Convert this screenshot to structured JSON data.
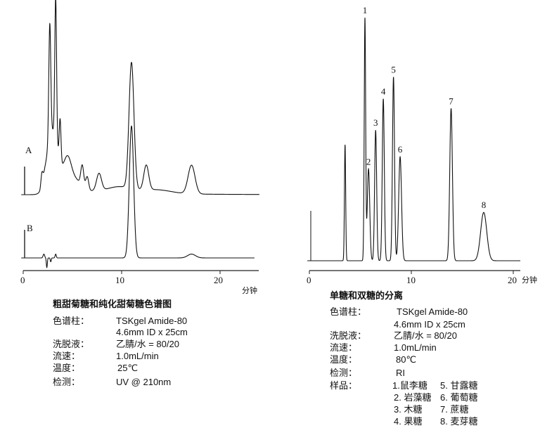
{
  "chart_data": [
    {
      "type": "line",
      "title": "粗甜菊糖和纯化甜菊糖色谱图",
      "xlabel": "分钟",
      "x_ticks": [
        "0",
        "10",
        "20"
      ],
      "xlim": [
        0,
        24
      ],
      "y_axis": "none (relative detector response, no scale printed)",
      "grid": false,
      "series": [
        {
          "name": "A",
          "baseline_offset": 38,
          "peaks": [
            {
              "t": 1.9,
              "h": 6,
              "w": 0.1
            },
            {
              "t": 3.0,
              "h": 30,
              "w": 0.55
            },
            {
              "t": 2.7,
              "h": 60,
              "w": 0.1
            },
            {
              "t": 3.3,
              "h": 74,
              "w": 0.09
            },
            {
              "t": 3.75,
              "h": 22,
              "w": 0.09
            },
            {
              "t": 4.5,
              "h": 16,
              "w": 0.4
            },
            {
              "t": 5.4,
              "h": 5,
              "w": 0.5
            },
            {
              "t": 6.0,
              "h": 11,
              "w": 0.15
            },
            {
              "t": 6.5,
              "h": 7,
              "w": 0.15
            },
            {
              "t": 7.7,
              "h": 9,
              "w": 0.25
            },
            {
              "t": 9.8,
              "h": 3,
              "w": 1.2
            },
            {
              "t": 11.0,
              "h": 66,
              "w": 0.25
            },
            {
              "t": 12.5,
              "h": 13,
              "w": 0.25
            },
            {
              "t": 13.5,
              "h": 2,
              "w": 1.5
            },
            {
              "t": 17.1,
              "h": 15,
              "w": 0.35
            }
          ]
        },
        {
          "name": "B",
          "baseline_offset": 5,
          "peaks": [
            {
              "t": 2.1,
              "h": 2,
              "w": 0.08
            },
            {
              "t": 2.4,
              "h": -5,
              "w": 0.05
            },
            {
              "t": 2.8,
              "h": -2,
              "w": 0.05
            },
            {
              "t": 3.3,
              "h": 2,
              "w": 0.06
            },
            {
              "t": 11.0,
              "h": 69,
              "w": 0.22
            },
            {
              "t": 17.1,
              "h": 2,
              "w": 0.4
            }
          ]
        }
      ],
      "conditions": {
        "column_label": "色谱柱：",
        "column_value": "TSKgel Amide-80",
        "column_value2": "4.6mm ID x 25cm",
        "eluent_label": "洗脱液：",
        "eluent_value": "乙腈/水 = 80/20",
        "flow_label": "流速：",
        "flow_value": "1.0mL/min",
        "temp_label": "温度：",
        "temp_value": "25℃",
        "detect_label": "检测：",
        "detect_value": "UV @ 210nm"
      }
    },
    {
      "type": "line",
      "title": "单糖和双糖的分离",
      "xlabel": "分钟",
      "x_ticks": [
        "0",
        "10",
        "20"
      ],
      "xlim": [
        0,
        20.7
      ],
      "y_axis": "none (relative detector response, no scale printed)",
      "grid": false,
      "series": [
        {
          "peaks": [
            {
              "t": 3.5,
              "h": 48,
              "w": 0.06,
              "label": ""
            },
            {
              "t": 5.45,
              "h": 100,
              "w": 0.07,
              "label": "1"
            },
            {
              "t": 5.8,
              "h": 38,
              "w": 0.12,
              "label": "2"
            },
            {
              "t": 6.5,
              "h": 54,
              "w": 0.1,
              "label": "3"
            },
            {
              "t": 7.25,
              "h": 67,
              "w": 0.1,
              "label": "4"
            },
            {
              "t": 8.25,
              "h": 76,
              "w": 0.1,
              "label": "5"
            },
            {
              "t": 8.9,
              "h": 43,
              "w": 0.14,
              "label": "6"
            },
            {
              "t": 13.9,
              "h": 63,
              "w": 0.13,
              "label": "7"
            },
            {
              "t": 17.1,
              "h": 20,
              "w": 0.3,
              "label": "8"
            }
          ]
        }
      ],
      "conditions": {
        "column_label": "色谱柱：",
        "column_value": "TSKgel Amide-80",
        "column_value2": "4.6mm ID x 25cm",
        "eluent_label": "洗脱液：",
        "eluent_value": "乙腈/水 = 80/20",
        "flow_label": "流速：",
        "flow_value": "1.0mL/min",
        "temp_label": "温度：",
        "temp_value": "80℃",
        "detect_label": "检测：",
        "detect_value": "RI",
        "sample_label": "样品：",
        "samples": [
          "1.鼠李糖",
          "2. 岩藻糖",
          "3. 木糖",
          "4. 果糖",
          "5. 甘露糖",
          "6. 葡萄糖",
          "7. 蔗糖",
          "8. 麦芽糖"
        ]
      }
    }
  ]
}
